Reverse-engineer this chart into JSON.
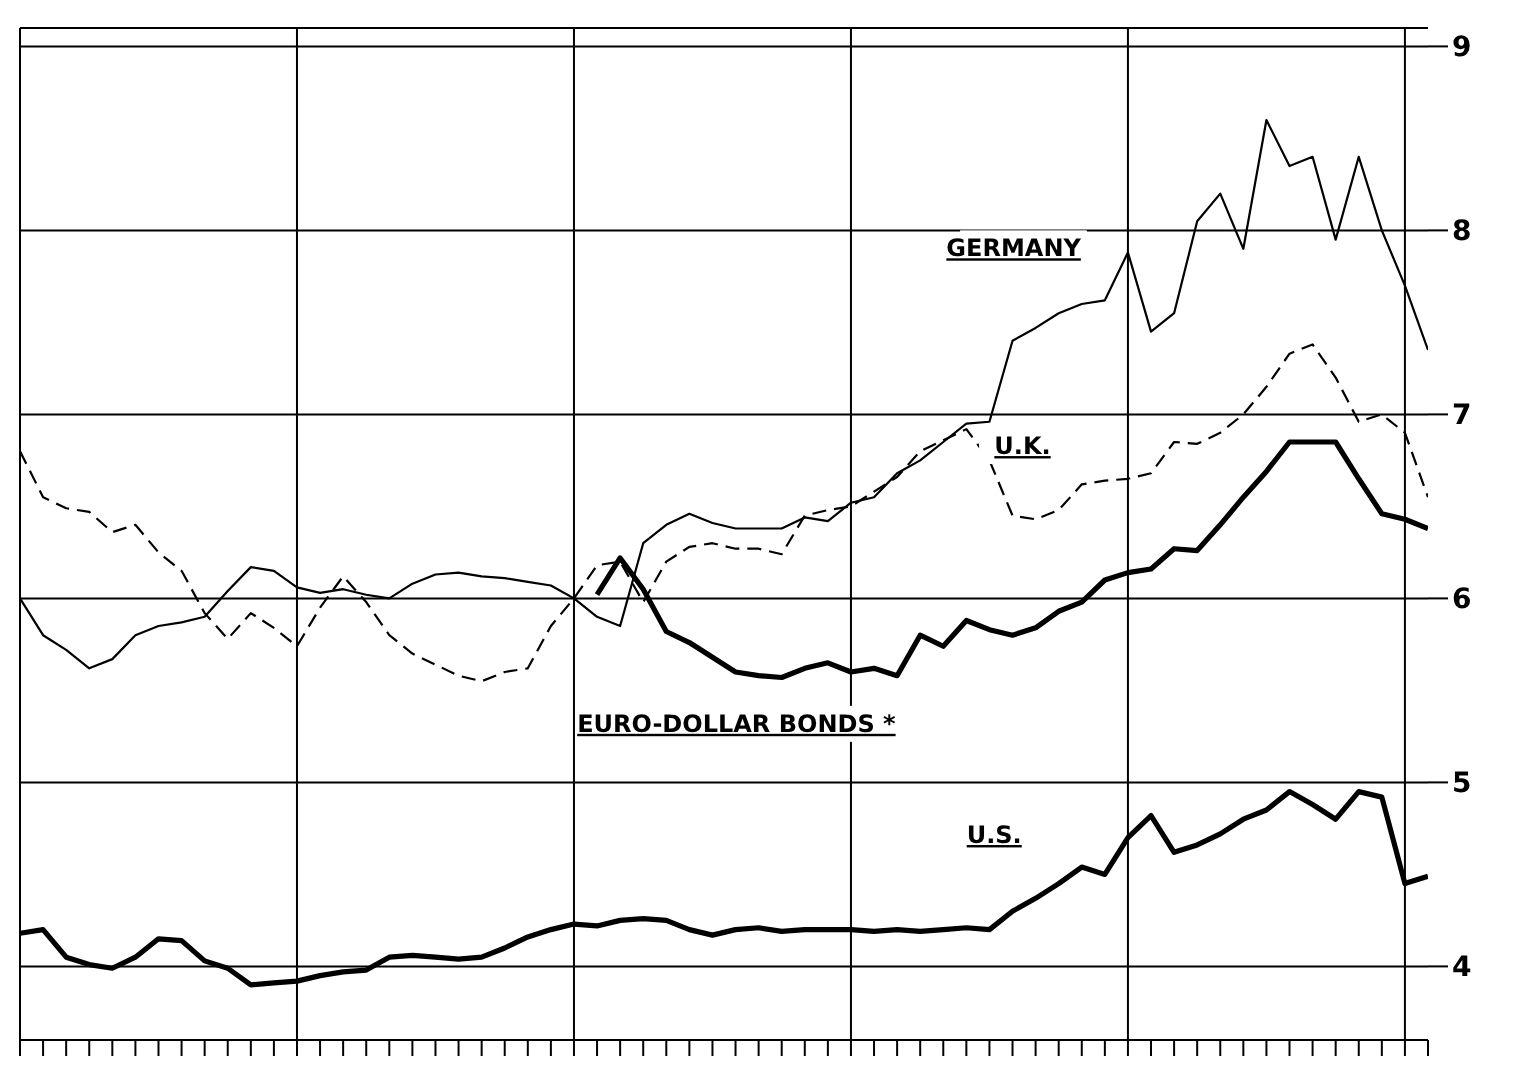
{
  "chart_data": {
    "type": "line",
    "categories": [
      null,
      null,
      null,
      null,
      null,
      null,
      null,
      null,
      null,
      null,
      null,
      null,
      null,
      null,
      null,
      null,
      null,
      null,
      null,
      null,
      null,
      null,
      null,
      null,
      null,
      null,
      null,
      null,
      null,
      null,
      null,
      null,
      null,
      null,
      null,
      null,
      null,
      null,
      null,
      null,
      null,
      null,
      null,
      null,
      null,
      null,
      null,
      null,
      null,
      null,
      null,
      null,
      null,
      null,
      null,
      null,
      null,
      null,
      null,
      null,
      null,
      null
    ],
    "series": [
      {
        "name": "GERMANY",
        "color": "#000000",
        "line_style": "solid",
        "values": [
          6.0,
          5.8,
          5.72,
          5.62,
          5.67,
          5.8,
          5.85,
          5.87,
          5.9,
          6.04,
          6.17,
          6.15,
          6.06,
          6.03,
          6.05,
          6.02,
          6.0,
          6.08,
          6.13,
          6.14,
          6.12,
          6.11,
          6.09,
          6.07,
          6.0,
          5.9,
          5.85,
          6.3,
          6.4,
          6.46,
          6.41,
          6.38,
          6.38,
          6.38,
          6.44,
          6.42,
          6.52,
          6.55,
          6.68,
          6.75,
          6.85,
          6.95,
          6.96,
          7.4,
          7.47,
          7.55,
          7.6,
          7.62,
          7.88,
          7.45,
          7.55,
          8.05,
          8.2,
          7.9,
          8.6,
          8.35,
          8.4,
          7.95,
          8.4,
          8.0,
          7.7,
          7.35
        ]
      },
      {
        "name": "U.K.",
        "color": "#000000",
        "line_style": "dashed",
        "values": [
          6.8,
          6.55,
          6.49,
          6.47,
          6.36,
          6.4,
          6.25,
          6.15,
          5.92,
          5.78,
          5.92,
          5.84,
          5.74,
          5.95,
          6.12,
          5.98,
          5.8,
          5.7,
          5.64,
          5.58,
          5.55,
          5.6,
          5.62,
          5.85,
          6.0,
          6.18,
          6.2,
          5.98,
          6.2,
          6.28,
          6.3,
          6.27,
          6.27,
          6.24,
          6.45,
          6.48,
          6.5,
          6.58,
          6.66,
          6.8,
          6.86,
          6.92,
          6.75,
          6.45,
          6.43,
          6.48,
          6.62,
          6.64,
          6.65,
          6.68,
          6.85,
          6.84,
          6.9,
          7.0,
          7.15,
          7.33,
          7.38,
          7.2,
          6.96,
          7.0,
          6.9,
          6.55
        ]
      },
      {
        "name": "EURO-DOLLAR BONDS *",
        "color": "#000000",
        "line_style": "solid",
        "values": [
          null,
          null,
          null,
          null,
          null,
          null,
          null,
          null,
          null,
          null,
          null,
          null,
          null,
          null,
          null,
          null,
          null,
          null,
          null,
          null,
          null,
          null,
          null,
          null,
          null,
          6.02,
          6.22,
          6.05,
          5.82,
          5.76,
          5.68,
          5.6,
          5.58,
          5.57,
          5.62,
          5.65,
          5.6,
          5.62,
          5.58,
          5.8,
          5.74,
          5.88,
          5.83,
          5.8,
          5.84,
          5.93,
          5.98,
          6.1,
          6.14,
          6.16,
          6.27,
          6.26,
          6.4,
          6.55,
          6.69,
          6.85,
          6.85,
          6.85,
          6.65,
          6.46,
          6.43,
          6.38
        ]
      },
      {
        "name": "U.S.",
        "color": "#000000",
        "line_style": "solid",
        "values": [
          4.18,
          4.2,
          4.05,
          4.01,
          3.99,
          4.05,
          4.15,
          4.14,
          4.03,
          3.99,
          3.9,
          3.91,
          3.92,
          3.95,
          3.97,
          3.98,
          4.05,
          4.06,
          4.05,
          4.04,
          4.05,
          4.1,
          4.16,
          4.2,
          4.23,
          4.22,
          4.25,
          4.26,
          4.25,
          4.2,
          4.17,
          4.2,
          4.21,
          4.19,
          4.2,
          4.2,
          4.2,
          4.19,
          4.2,
          4.19,
          4.2,
          4.21,
          4.2,
          4.3,
          4.37,
          4.45,
          4.54,
          4.5,
          4.7,
          4.82,
          4.62,
          4.66,
          4.72,
          4.8,
          4.85,
          4.95,
          4.88,
          4.8,
          4.95,
          4.92,
          4.45,
          4.49
        ]
      }
    ],
    "ylim": [
      3.6,
      9.1
    ],
    "yticks": [
      4,
      5,
      6,
      7,
      8,
      9
    ],
    "grid": true,
    "tick_labels": "y",
    "marker": "none"
  }
}
